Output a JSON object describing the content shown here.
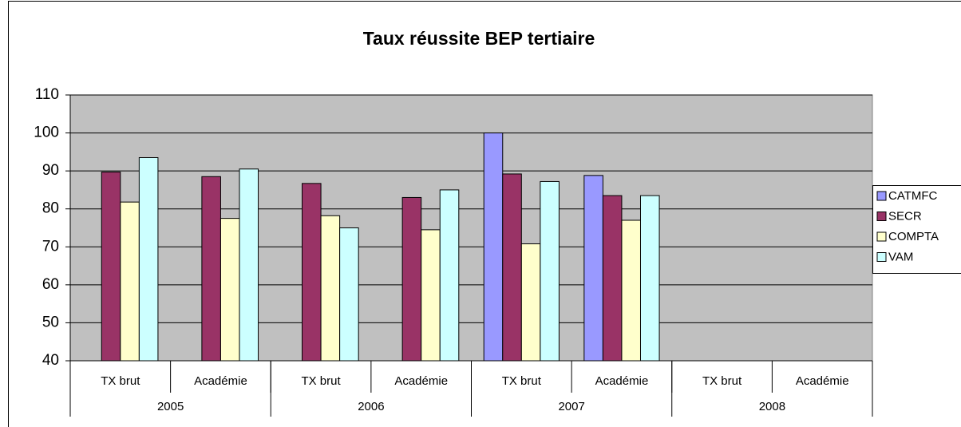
{
  "chart_data": {
    "type": "bar",
    "title": "Taux réussite BEP tertiaire",
    "groups": [
      {
        "name": "2005",
        "categories": [
          "TX brut",
          "Académie"
        ]
      },
      {
        "name": "2006",
        "categories": [
          "TX brut",
          "Académie"
        ]
      },
      {
        "name": "2007",
        "categories": [
          "TX brut",
          "Académie"
        ]
      },
      {
        "name": "2008",
        "categories": [
          "TX brut",
          "Académie"
        ]
      }
    ],
    "series": [
      {
        "name": "CATMFC",
        "color": "#9999ff",
        "values": [
          null,
          null,
          null,
          null,
          100,
          88.8,
          null,
          null
        ]
      },
      {
        "name": "SECR",
        "color": "#993366",
        "values": [
          89.7,
          88.5,
          86.7,
          83,
          89.2,
          83.5,
          null,
          null
        ]
      },
      {
        "name": "COMPTA",
        "color": "#ffffcc",
        "values": [
          81.8,
          77.5,
          78.2,
          74.5,
          70.8,
          77,
          null,
          null
        ]
      },
      {
        "name": "VAM",
        "color": "#ccffff",
        "values": [
          93.5,
          90.5,
          75,
          85,
          87.2,
          83.5,
          null,
          null
        ]
      }
    ],
    "ylim": [
      40,
      110
    ],
    "yticks": [
      40,
      50,
      60,
      70,
      80,
      90,
      100,
      110
    ],
    "grid": true,
    "legend": "right"
  }
}
